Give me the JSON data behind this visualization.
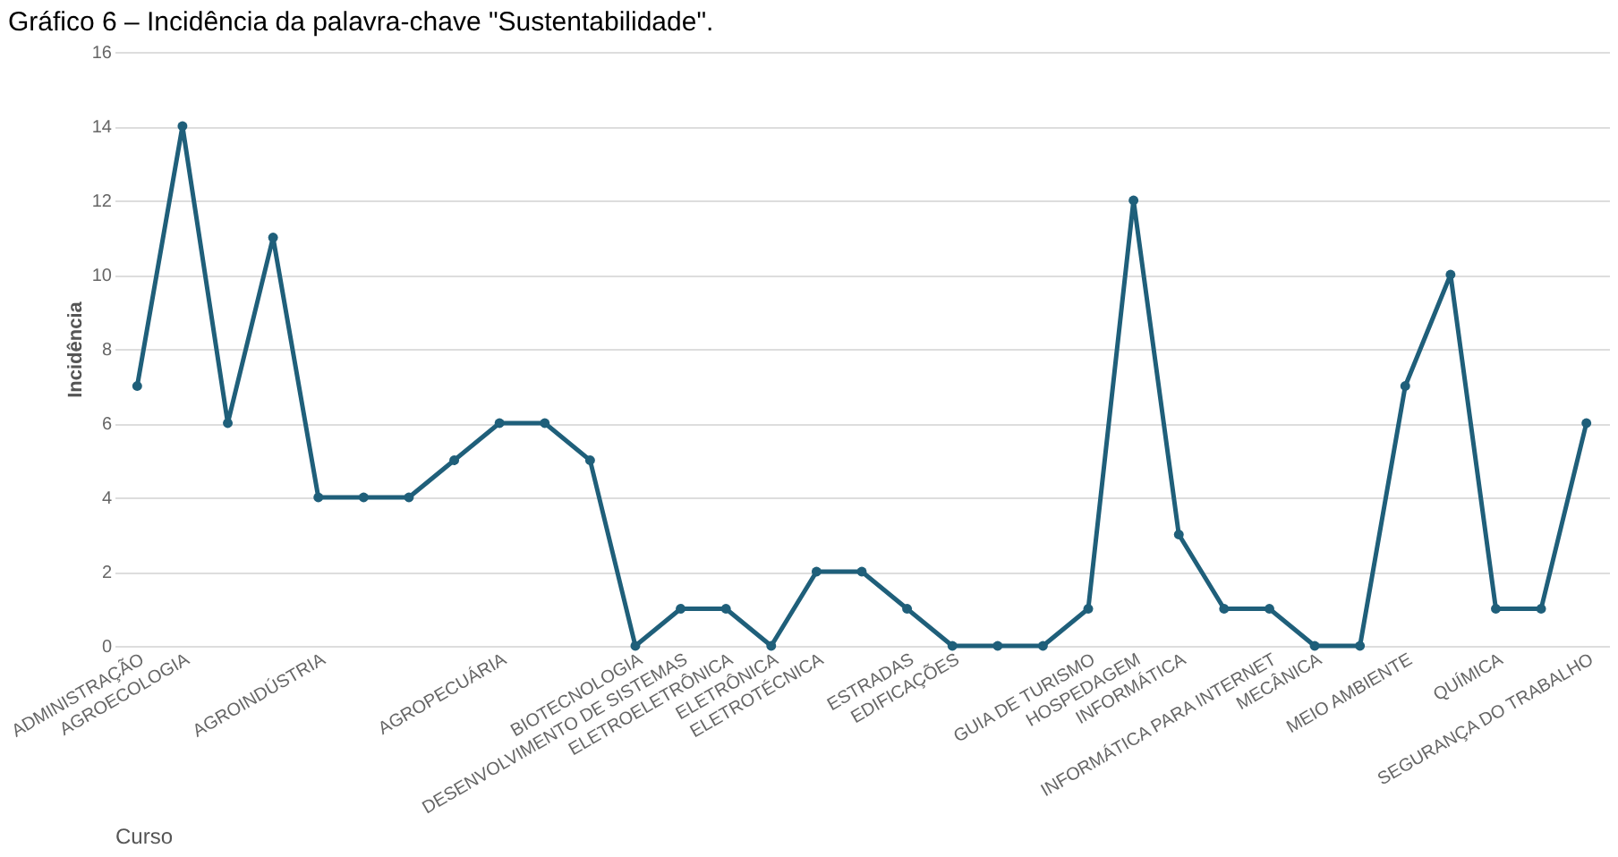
{
  "chart_data": {
    "type": "line",
    "title": "Gráfico 6 – Incidência da palavra-chave \"Sustentabilidade\".",
    "xlabel": "Curso",
    "ylabel": "Incidência",
    "categories": [
      "ADMINISTRAÇÃO",
      "AGROECOLOGIA",
      null,
      null,
      "AGROINDÚSTRIA",
      null,
      null,
      null,
      "AGROPECUÁRIA",
      null,
      null,
      "BIOTECNOLOGIA",
      "DESENVOLVIMENTO DE SISTEMAS",
      "ELETROELETRÔNICA",
      "ELETRÔNICA",
      "ELETROTÉCNICA",
      null,
      "ESTRADAS",
      "EDIFICAÇÕES",
      null,
      null,
      "GUIA DE TURISMO",
      "HOSPEDAGEM",
      "INFORMÁTICA",
      null,
      "INFORMÁTICA PARA INTERNET",
      "MECÂNICA",
      null,
      "MEIO AMBIENTE",
      null,
      "QUÍMICA",
      null,
      "SEGURANÇA DO TRABALHO"
    ],
    "series": [
      {
        "color": "#1f5f7a",
        "values": [
          7,
          14,
          6,
          11,
          4,
          4,
          4,
          5,
          6,
          6,
          5,
          0,
          1,
          1,
          0,
          2,
          2,
          1,
          0,
          0,
          0,
          1,
          12,
          3,
          1,
          1,
          0,
          0,
          7,
          10,
          1,
          1,
          6
        ]
      }
    ],
    "ylim": [
      0,
      16
    ],
    "yticks": [
      0,
      2,
      4,
      6,
      8,
      10,
      12,
      14,
      16
    ],
    "grid": "y",
    "marker": "circle",
    "line_style": "solid"
  }
}
